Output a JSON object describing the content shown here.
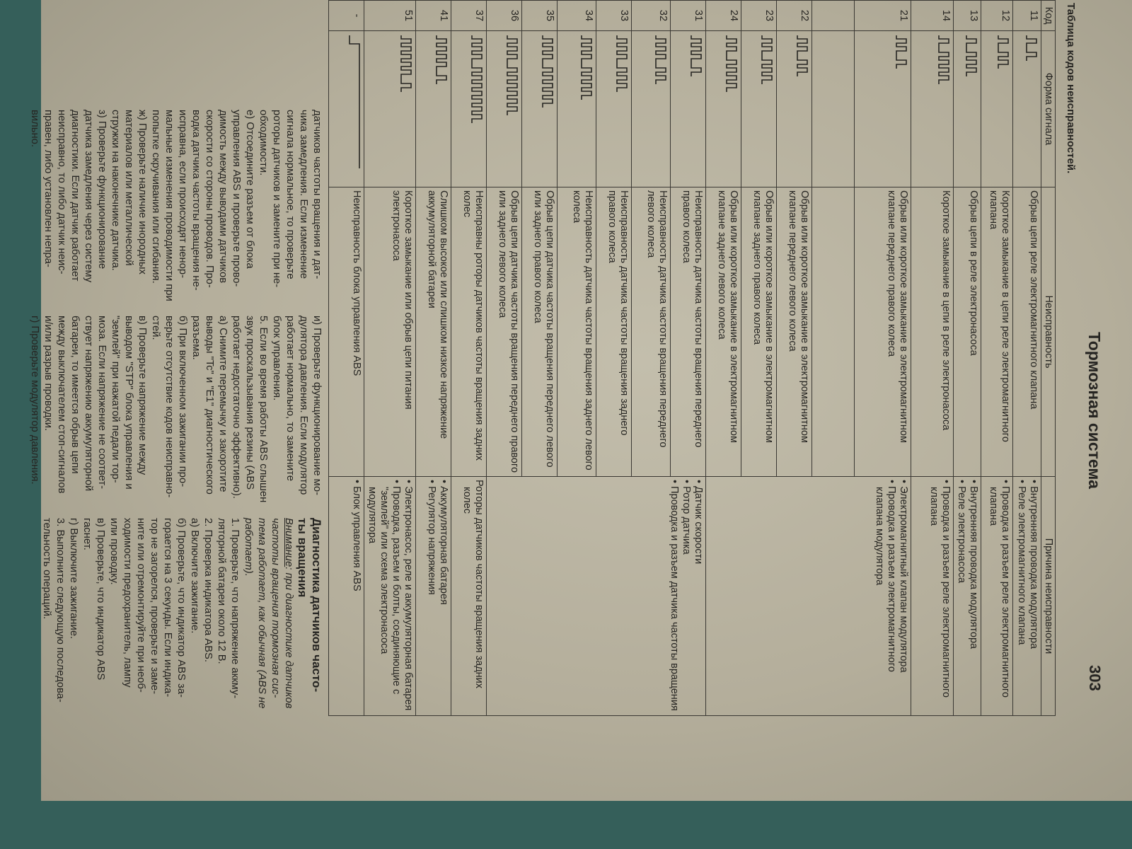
{
  "header": {
    "title": "Тормозная система",
    "page_number": "303"
  },
  "table": {
    "caption": "Таблица кодов неисправностей.",
    "columns": [
      "Код",
      "Форма сигнала",
      "Неисправность",
      "Причина неисправности"
    ],
    "rows": [
      {
        "code": "11",
        "fault": "Обрыв цепи реле электромагнитного клапана",
        "causes": [
          "• Внутренняя проводка модулятора",
          "• Реле электромагнитного клапана"
        ],
        "span": 1
      },
      {
        "code": "12",
        "fault": "Короткое замыкание в цепи реле электромагнитного клапана",
        "causes": [
          "• Проводка и разъем реле электромагнитного клапана"
        ],
        "span": 1
      },
      {
        "code": "13",
        "fault": "Обрыв цепи в реле электронасоса",
        "causes": [
          "• Внутренняя проводка модулятора",
          "• Реле электронасоса"
        ],
        "span": 1
      },
      {
        "code": "14",
        "fault": "Короткое замыкание в цепи в реле электронасоса",
        "causes": [
          "• Проводка и разъем реле электромагнитного клапана"
        ],
        "span": 1
      },
      {
        "code": "21",
        "fault": "Обрыв или короткое замыкание в электромагнитном клапане переднего правого колеса",
        "causes": [
          "• Электромагнитный клапан модулятора",
          "• Проводка и разъем электромагнитного клапана модулятора"
        ],
        "span": 5
      },
      {
        "code": "",
        "fault": "",
        "causes": null
      },
      {
        "code": "22",
        "fault": "Обрыв или короткое замыкание в электромагнитном клапане переднего левого колеса",
        "causes": null
      },
      {
        "code": "23",
        "fault": "Обрыв или короткое замыкание в электромагнитном клапане заднего правого колеса",
        "causes": null
      },
      {
        "code": "24",
        "fault": "Обрыв или короткое замыкание в электромагнитном клапане заднего левого колеса",
        "causes": null
      },
      {
        "code": "31",
        "fault": "Неисправность датчика частоты вращения переднего правого колеса",
        "causes": [
          "• Датчик скорости",
          "• Ротор датчика",
          "• Проводка и разъем датчика частоты вращения"
        ],
        "span": 6
      },
      {
        "code": "32",
        "fault": "Неисправность датчика частоты вращения переднего левого колеса",
        "causes": null
      },
      {
        "code": "33",
        "fault": "Неисправность датчика частоты вращения заднего правого колеса",
        "causes": null
      },
      {
        "code": "34",
        "fault": "Неисправность датчика частоты вращения заднего левого колеса",
        "causes": null
      },
      {
        "code": "35",
        "fault": "Обрыв цепи датчика частоты вращения переднего левого или заднего правого колеса",
        "causes": null
      },
      {
        "code": "36",
        "fault": "Обрыв цепи датчика частоты вращения переднего правого или заднего левого колеса",
        "causes": null
      },
      {
        "code": "37",
        "fault": "Неисправны роторы датчиков частоты вращения задних колес",
        "causes": [
          "Роторы датчиков частоты вращения задних колес"
        ],
        "span": 1
      },
      {
        "code": "41",
        "fault": "Слишком высокое или слишком низкое напряжение аккумуляторной батареи",
        "causes": [
          "• Аккумуляторная батарея",
          "• Регулятор напряжения"
        ],
        "span": 1
      },
      {
        "code": "51",
        "fault": "Короткое замыкание или обрыв цепи питания электронасоса",
        "causes": [
          "• Электронасос, реле и аккумуляторная батарея",
          "• Проводка, разъем и болты, соединяющие с \"землей\" или схема электронасоса модулятора"
        ],
        "span": 1
      },
      {
        "code": "-",
        "fault": "Неисправность блока управления ABS",
        "causes": [
          "• Блок управления ABS"
        ],
        "span": 1
      }
    ]
  },
  "text": {
    "col1": [
      "датчиков частоты вращения и дат-",
      "чика замедления. Если изменение",
      "сигнала нормальное, то проверьте",
      "роторы датчиков и замените при не-",
      "обходимости.",
      "е) Отсоедините разъем от блока",
      "управления ABS и проверьте прово-",
      "димость между выводами датчиков",
      "скорости со стороны проводов. Про-",
      "водка датчика частоты вращения не-",
      "исправна, если происходят ненор-",
      "мальные изменения проводимости при",
      "попытке скручивания или сгибания.",
      "ж) Проверьте наличие инородных",
      "материалов или металлической",
      "стружки на наконечнике датчика.",
      "з) Проверьте функционирование",
      "датчика замедления через систему",
      "диагностики. Если датчик работает",
      "неисправно, то либо датчик неис-",
      "правен, либо установлен непра-",
      "вильно."
    ],
    "col2": [
      "и) Проверьте функционирование мо-",
      "дулятора давления. Если модулятор",
      "работает нормально, то замените",
      "блок управления.",
      "5. Если во время работы ABS слышен",
      "звук проскальзывания резины (ABS",
      "работает недостаточно эффективно).",
      "а) Снимите перемычку и закоротите",
      "выводы \"Tc\" и \"E1\" диагностического",
      "разъема.",
      "б) При включенном зажигании про-",
      "верьте отсутствие кодов неисправно-",
      "стей.",
      "в) Проверьте напряжение между",
      "выводом \"STP\" блока управления и",
      "\"землей\" при нажатой педали тор-",
      "моза. Если напряжение не соответ-",
      "ствует напряжению аккумуляторной",
      "батареи, то имеется обрыв цепи",
      "между выключателем стоп-сигналов",
      "и/или разрыв проводки.",
      "г) Проверьте модулятор давления."
    ],
    "col3_heading": [
      "Диагностика датчиков часто-",
      "ты вращения"
    ],
    "col3_note_label": "Внимание",
    "col3_note": [
      ": при диагностике датчиков",
      "частоты вращения тормозная сис-",
      "тема работает, как обычная (ABS не",
      "работает)."
    ],
    "col3": [
      "1. Проверьте, что напряжение аккму-",
      "ляторной батареи около 12 В.",
      "2. Проверка индикатора ABS.",
      "а) Включите зажигание.",
      "б) Проверьте, что индикатор ABS за-",
      "горается на 3 секунды. Если индика-",
      "тор не загорелся, проверьте и заме-",
      "ните или отремонтируйте при необ-",
      "ходимости предохранитель, лампу",
      "или проводку.",
      "в) Проверьте, что индикатор ABS",
      "гаснет.",
      "г) Выключите зажигание.",
      "3. Выполните следующую последова-",
      "тельность операций."
    ]
  }
}
